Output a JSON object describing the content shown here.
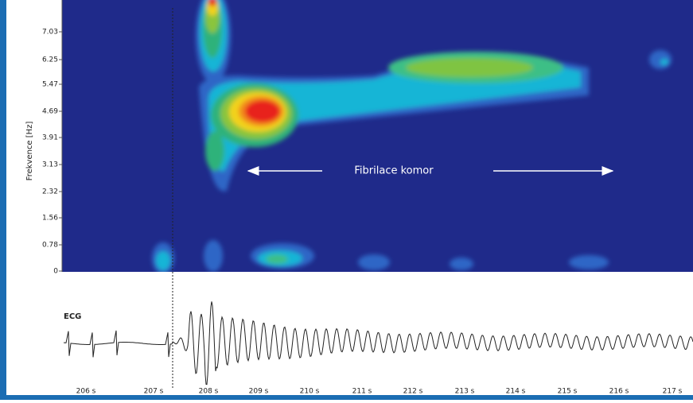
{
  "figure": {
    "y_axis_label": "Frekvence [Hz]",
    "y_ticks": [
      "7.03",
      "6.25",
      "5.47",
      "4.69",
      "3.91",
      "3.13",
      "2.32",
      "1.56",
      "0.78",
      "0"
    ],
    "x_ticks": [
      "206 s",
      "207 s",
      "208 s",
      "209 s",
      "210 s",
      "211 s",
      "212 s",
      "213 s",
      "214 s",
      "215 s",
      "216 s",
      "217 s"
    ],
    "annotation": "Fibrilace komor",
    "ecg_label": "ECG"
  }
}
